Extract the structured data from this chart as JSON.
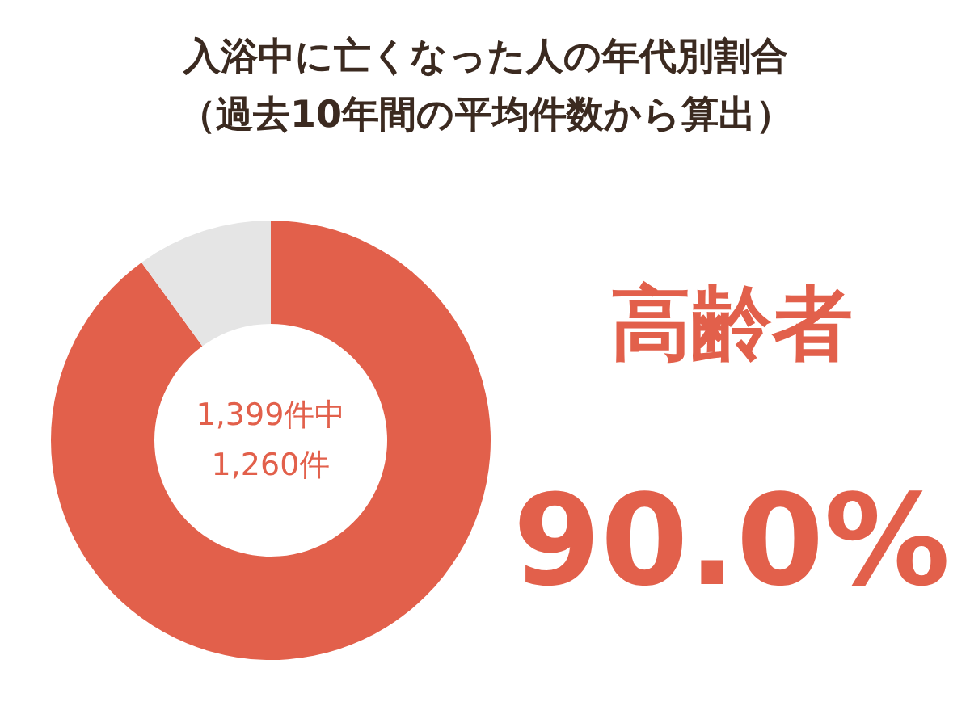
{
  "chart_data": {
    "type": "donut",
    "title": "入浴中に亡くなった人の年代別割合",
    "subtitle": "（過去10年間の平均件数から算出）",
    "categories": [
      "高齢者",
      null
    ],
    "values": [
      90.0,
      10.0
    ],
    "colors": [
      "#e2604b",
      "#e5e5e5"
    ],
    "value_labels": [
      "90.0%",
      null
    ],
    "annotations": [
      "1,399件中\n1,260件"
    ]
  }
}
